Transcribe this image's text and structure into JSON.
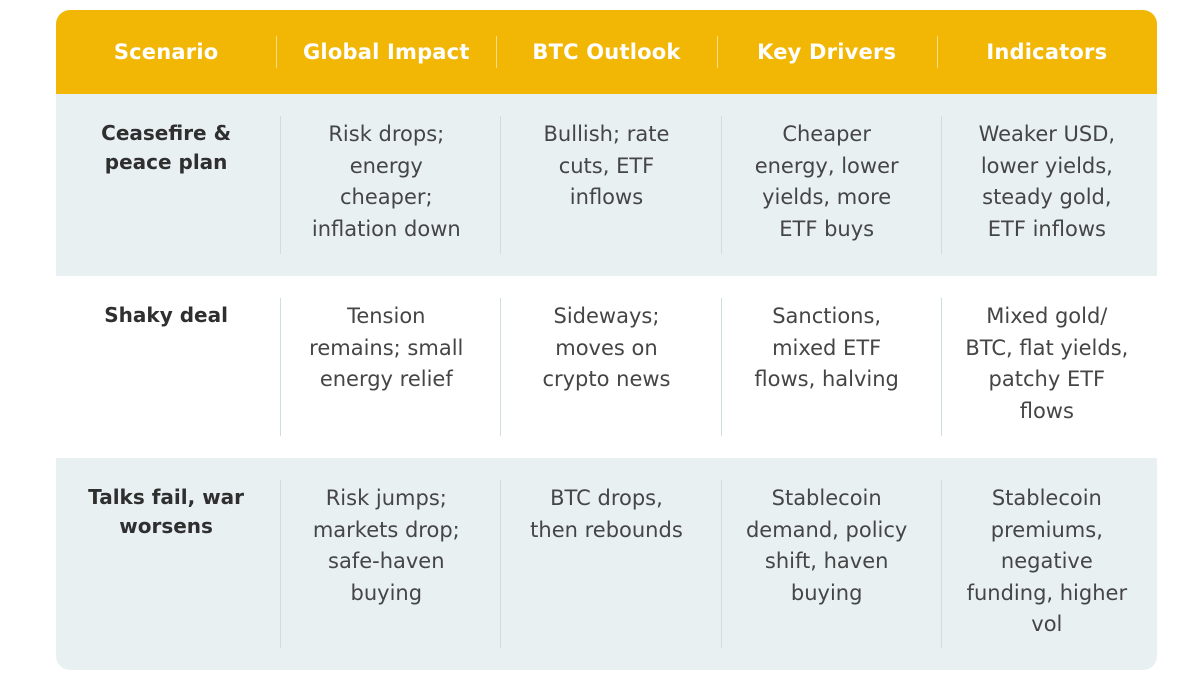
{
  "header": {
    "columns": [
      "Scenario",
      "Global Impact",
      "BTC Outlook",
      "Key Drivers",
      "Indicators"
    ]
  },
  "rows": [
    {
      "scenario": "Ceasefire &\npeace plan",
      "global_impact": "Risk drops;\nenergy\ncheaper;\ninflation down",
      "btc_outlook": "Bullish; rate\ncuts, ETF\ninflows",
      "key_drivers": "Cheaper\nenergy, lower\nyields, more\nETF buys",
      "indicators": "Weaker USD,\nlower yields,\nsteady gold,\nETF inflows"
    },
    {
      "scenario": "Shaky deal",
      "global_impact": "Tension\nremains; small\nenergy relief",
      "btc_outlook": "Sideways;\nmoves on\ncrypto news",
      "key_drivers": "Sanctions,\nmixed ETF\nflows, halving",
      "indicators": "Mixed gold/\nBTC, flat yields,\npatchy ETF\nflows"
    },
    {
      "scenario": "Talks fail, war\nworsens",
      "global_impact": "Risk jumps;\nmarkets drop;\nsafe-haven\nbuying",
      "btc_outlook": "BTC drops,\nthen rebounds",
      "key_drivers": "Stablecoin\ndemand, policy\nshift, haven\nbuying",
      "indicators": "Stablecoin\npremiums,\nnegative\nfunding, higher\nvol"
    }
  ],
  "colors": {
    "header_bg": "#f2b705",
    "shaded_row_bg": "#e8f0f2",
    "text": "#454545"
  }
}
